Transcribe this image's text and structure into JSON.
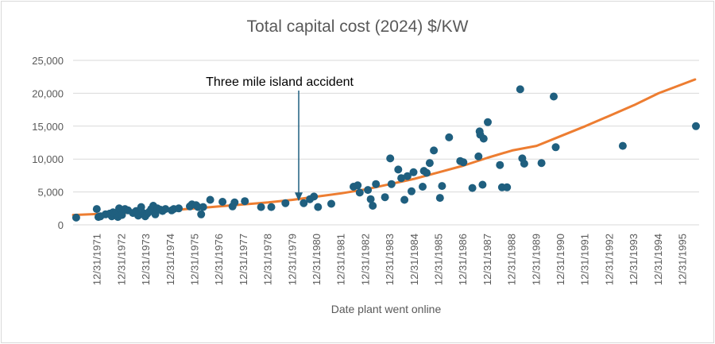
{
  "chart_data": {
    "type": "scatter",
    "title": "Total capital cost (2024) $/KW",
    "xlabel": "Date plant went online",
    "ylabel": "",
    "x_axis_type": "date",
    "x_ticks": [
      "12/31/1971",
      "12/31/1972",
      "12/31/1973",
      "12/31/1974",
      "12/31/1975",
      "12/31/1976",
      "12/31/1977",
      "12/31/1978",
      "12/31/1979",
      "12/31/1980",
      "12/31/1981",
      "12/31/1982",
      "12/31/1983",
      "12/31/1984",
      "12/31/1985",
      "12/31/1986",
      "12/31/1987",
      "12/31/1988",
      "12/31/1989",
      "12/31/1990",
      "12/31/1991",
      "12/31/1992",
      "12/31/1993",
      "12/31/1994",
      "12/31/1995"
    ],
    "xlim": [
      "12/31/1970",
      "08/31/1996"
    ],
    "y_ticks": [
      "0",
      "5,000",
      "10,000",
      "15,000",
      "20,000",
      "25,000"
    ],
    "ylim": [
      0,
      25000
    ],
    "grid": "horizontal",
    "legend": "none",
    "colors": {
      "points": "#1f5f7f",
      "trend": "#ed7d31",
      "grid": "#d9d9d9",
      "annotation": "#1f5f7f"
    },
    "series": [
      {
        "kind": "scatter",
        "points": [
          [
            "1971-02-15",
            1100
          ],
          [
            "1971-12-20",
            2400
          ],
          [
            "1972-01-15",
            1200
          ],
          [
            "1972-02-15",
            1300
          ],
          [
            "1972-05-01",
            1600
          ],
          [
            "1972-07-01",
            1700
          ],
          [
            "1972-08-01",
            1300
          ],
          [
            "1972-08-20",
            1900
          ],
          [
            "1972-10-01",
            1800
          ],
          [
            "1972-11-01",
            1200
          ],
          [
            "1972-11-20",
            2500
          ],
          [
            "1973-01-01",
            1500
          ],
          [
            "1973-02-15",
            2400
          ],
          [
            "1973-04-01",
            2200
          ],
          [
            "1973-06-15",
            1800
          ],
          [
            "1973-08-01",
            2100
          ],
          [
            "1973-09-01",
            1400
          ],
          [
            "1973-10-15",
            2700
          ],
          [
            "1973-11-15",
            1800
          ],
          [
            "1973-12-15",
            1300
          ],
          [
            "1974-01-15",
            1700
          ],
          [
            "1974-02-15",
            2000
          ],
          [
            "1974-03-15",
            2400
          ],
          [
            "1974-04-15",
            2900
          ],
          [
            "1974-05-15",
            1600
          ],
          [
            "1974-06-15",
            2500
          ],
          [
            "1974-08-01",
            2300
          ],
          [
            "1974-09-01",
            2100
          ],
          [
            "1974-10-15",
            2400
          ],
          [
            "1975-01-15",
            2200
          ],
          [
            "1975-02-15",
            2400
          ],
          [
            "1975-05-01",
            2500
          ],
          [
            "1975-10-15",
            2800
          ],
          [
            "1975-11-15",
            3100
          ],
          [
            "1976-01-15",
            3000
          ],
          [
            "1976-02-15",
            2700
          ],
          [
            "1976-04-01",
            1600
          ],
          [
            "1976-05-01",
            2700
          ],
          [
            "1976-08-15",
            3800
          ],
          [
            "1977-02-15",
            3500
          ],
          [
            "1977-07-15",
            2800
          ],
          [
            "1977-08-15",
            3400
          ],
          [
            "1978-01-15",
            3600
          ],
          [
            "1978-09-15",
            2700
          ],
          [
            "1979-02-15",
            2700
          ],
          [
            "1979-09-15",
            3300
          ],
          [
            "1980-06-15",
            3300
          ],
          [
            "1980-09-15",
            3900
          ],
          [
            "1980-11-15",
            4300
          ],
          [
            "1981-01-15",
            2700
          ],
          [
            "1981-08-01",
            3200
          ],
          [
            "1982-07-01",
            5800
          ],
          [
            "1982-09-01",
            6000
          ],
          [
            "1982-10-01",
            4900
          ],
          [
            "1983-02-01",
            5300
          ],
          [
            "1983-03-15",
            3900
          ],
          [
            "1983-04-15",
            2900
          ],
          [
            "1983-06-01",
            6200
          ],
          [
            "1983-10-15",
            4200
          ],
          [
            "1984-01-01",
            10100
          ],
          [
            "1984-01-20",
            6200
          ],
          [
            "1984-05-01",
            8400
          ],
          [
            "1984-06-15",
            7100
          ],
          [
            "1984-08-01",
            3800
          ],
          [
            "1984-09-15",
            7400
          ],
          [
            "1984-11-15",
            5100
          ],
          [
            "1984-12-15",
            8000
          ],
          [
            "1985-05-01",
            5800
          ],
          [
            "1985-05-20",
            8200
          ],
          [
            "1985-07-01",
            7900
          ],
          [
            "1985-08-15",
            9400
          ],
          [
            "1985-10-15",
            11300
          ],
          [
            "1986-01-15",
            4100
          ],
          [
            "1986-02-15",
            5900
          ],
          [
            "1986-06-01",
            13300
          ],
          [
            "1986-11-15",
            9700
          ],
          [
            "1987-01-01",
            9500
          ],
          [
            "1987-05-15",
            5600
          ],
          [
            "1987-08-15",
            10400
          ],
          [
            "1987-09-01",
            14200
          ],
          [
            "1987-09-10",
            13700
          ],
          [
            "1987-10-15",
            6100
          ],
          [
            "1987-11-01",
            13100
          ],
          [
            "1988-01-01",
            15600
          ],
          [
            "1988-07-01",
            9100
          ],
          [
            "1988-08-01",
            5700
          ],
          [
            "1988-10-15",
            5700
          ],
          [
            "1989-05-01",
            20600
          ],
          [
            "1989-06-01",
            10100
          ],
          [
            "1989-07-01",
            9300
          ],
          [
            "1990-03-15",
            9400
          ],
          [
            "1990-09-15",
            19500
          ],
          [
            "1990-10-15",
            11800
          ],
          [
            "1993-07-15",
            12000
          ],
          [
            "1996-07-15",
            15000
          ]
        ]
      },
      {
        "kind": "trendline",
        "points": [
          [
            "1971-01-01",
            1500
          ],
          [
            "1973-01-01",
            1800
          ],
          [
            "1975-01-01",
            2200
          ],
          [
            "1977-01-01",
            2800
          ],
          [
            "1979-01-01",
            3400
          ],
          [
            "1980-01-01",
            3800
          ],
          [
            "1982-01-01",
            4800
          ],
          [
            "1983-01-01",
            5400
          ],
          [
            "1984-01-01",
            6200
          ],
          [
            "1985-01-01",
            7000
          ],
          [
            "1986-01-01",
            8000
          ],
          [
            "1987-01-01",
            9000
          ],
          [
            "1988-01-01",
            10200
          ],
          [
            "1989-01-01",
            11300
          ],
          [
            "1990-01-01",
            12000
          ],
          [
            "1991-01-01",
            13500
          ],
          [
            "1992-01-01",
            15000
          ],
          [
            "1993-01-01",
            16600
          ],
          [
            "1994-01-01",
            18200
          ],
          [
            "1995-01-01",
            20000
          ],
          [
            "1996-07-01",
            22100
          ]
        ]
      }
    ],
    "annotations": [
      {
        "text": "Three mile island accident",
        "target": [
          "1980-04-01",
          3600
        ],
        "arrow": "down"
      }
    ]
  }
}
